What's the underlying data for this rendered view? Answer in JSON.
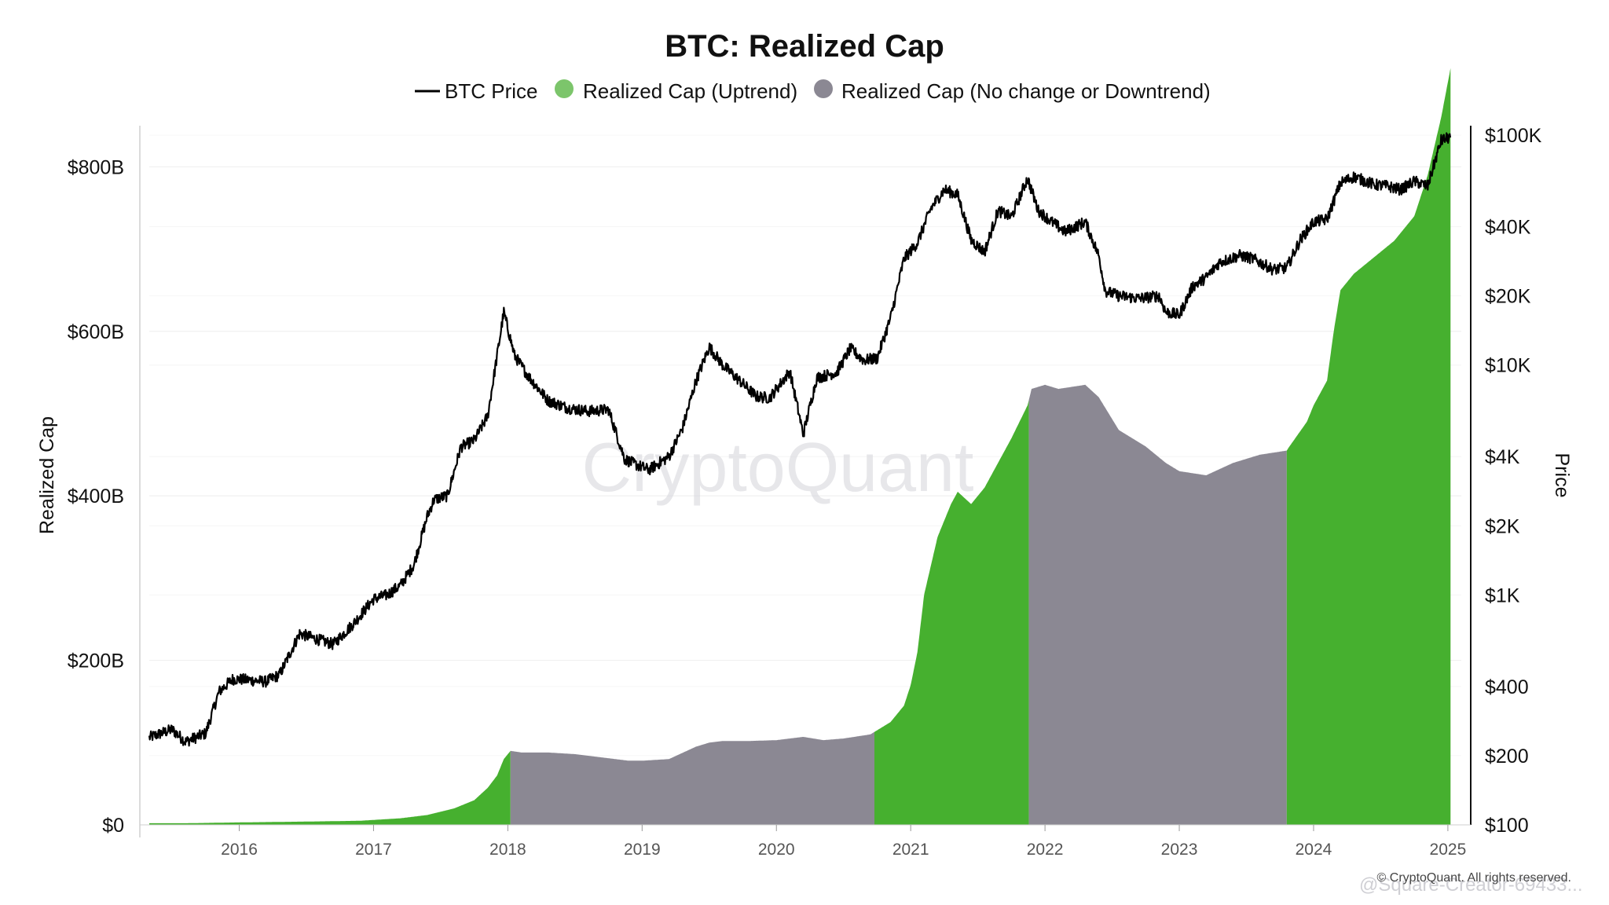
{
  "chart_data": {
    "type": "area",
    "title": "BTC: Realized Cap",
    "legend": [
      {
        "key": "price",
        "label": "BTC Price",
        "symbol": "line",
        "color": "#000000"
      },
      {
        "key": "uptrend",
        "label": "Realized Cap (Uptrend)",
        "symbol": "dot",
        "color": "#7cc56b"
      },
      {
        "key": "flat",
        "label": "Realized Cap (No change or Downtrend)",
        "symbol": "dot",
        "color": "#8b8893"
      }
    ],
    "colors": {
      "uptrend_fill": "#46b02f",
      "flat_fill": "#8b8893",
      "price_line": "#000000"
    },
    "xlim": [
      2015.33,
      2025.1
    ],
    "x_ticks": [
      2016,
      2017,
      2018,
      2019,
      2020,
      2021,
      2022,
      2023,
      2024,
      2025
    ],
    "x_tick_labels": [
      "2016",
      "2017",
      "2018",
      "2019",
      "2020",
      "2021",
      "2022",
      "2023",
      "2024",
      "2025"
    ],
    "left_axis": {
      "label": "Realized Cap",
      "unit": "billion USD",
      "ylim": [
        0,
        850
      ],
      "ticks": [
        0,
        200,
        400,
        600,
        800
      ],
      "tick_labels": [
        "$0",
        "$200B",
        "$400B",
        "$600B",
        "$800B"
      ]
    },
    "right_axis": {
      "label": "Price",
      "scale": "log",
      "ylim": [
        100,
        110000
      ],
      "ticks": [
        100,
        200,
        400,
        1000,
        2000,
        4000,
        10000,
        20000,
        40000,
        100000
      ],
      "tick_labels": [
        "$100",
        "$200",
        "$400",
        "$1K",
        "$2K",
        "$4K",
        "$10K",
        "$20K",
        "$40K",
        "$100K"
      ]
    },
    "series": [
      {
        "name": "Realized Cap",
        "axis": "left",
        "unit": "billion USD",
        "x": [
          2015.33,
          2015.6,
          2016.0,
          2016.5,
          2016.9,
          2017.2,
          2017.4,
          2017.6,
          2017.75,
          2017.85,
          2017.92,
          2017.97,
          2018.02,
          2018.1,
          2018.3,
          2018.5,
          2018.7,
          2018.9,
          2019.0,
          2019.2,
          2019.4,
          2019.5,
          2019.6,
          2019.8,
          2020.0,
          2020.2,
          2020.35,
          2020.5,
          2020.7,
          2020.75,
          2020.85,
          2020.95,
          2021.0,
          2021.05,
          2021.1,
          2021.2,
          2021.3,
          2021.35,
          2021.45,
          2021.55,
          2021.65,
          2021.75,
          2021.87,
          2021.9,
          2022.0,
          2022.1,
          2022.3,
          2022.4,
          2022.55,
          2022.75,
          2022.9,
          2023.0,
          2023.2,
          2023.4,
          2023.6,
          2023.8,
          2023.82,
          2023.95,
          2024.0,
          2024.1,
          2024.15,
          2024.2,
          2024.3,
          2024.45,
          2024.6,
          2024.75,
          2024.85,
          2024.95,
          2025.02
        ],
        "y": [
          2,
          2,
          3,
          4,
          5,
          8,
          12,
          20,
          30,
          45,
          60,
          80,
          90,
          88,
          88,
          86,
          82,
          78,
          78,
          80,
          95,
          100,
          102,
          102,
          103,
          107,
          103,
          105,
          110,
          115,
          125,
          145,
          170,
          210,
          280,
          350,
          390,
          405,
          390,
          410,
          440,
          470,
          510,
          530,
          535,
          530,
          535,
          520,
          480,
          460,
          440,
          430,
          425,
          440,
          450,
          455,
          460,
          490,
          510,
          540,
          600,
          650,
          670,
          690,
          710,
          740,
          790,
          860,
          920
        ]
      },
      {
        "name": "BTC Price",
        "axis": "right",
        "unit": "USD",
        "x": [
          2015.33,
          2015.5,
          2015.6,
          2015.75,
          2015.85,
          2015.95,
          2016.0,
          2016.2,
          2016.3,
          2016.45,
          2016.55,
          2016.7,
          2016.85,
          2017.0,
          2017.1,
          2017.2,
          2017.3,
          2017.4,
          2017.45,
          2017.55,
          2017.65,
          2017.75,
          2017.85,
          2017.92,
          2017.97,
          2018.05,
          2018.15,
          2018.3,
          2018.45,
          2018.6,
          2018.75,
          2018.87,
          2018.95,
          2019.05,
          2019.2,
          2019.3,
          2019.4,
          2019.5,
          2019.6,
          2019.75,
          2019.85,
          2019.95,
          2020.1,
          2020.2,
          2020.3,
          2020.45,
          2020.55,
          2020.65,
          2020.75,
          2020.85,
          2020.95,
          2021.05,
          2021.15,
          2021.25,
          2021.35,
          2021.45,
          2021.55,
          2021.65,
          2021.75,
          2021.87,
          2021.95,
          2022.05,
          2022.15,
          2022.3,
          2022.4,
          2022.45,
          2022.55,
          2022.7,
          2022.85,
          2022.9,
          2023.0,
          2023.1,
          2023.2,
          2023.3,
          2023.45,
          2023.55,
          2023.7,
          2023.8,
          2023.9,
          2024.0,
          2024.1,
          2024.2,
          2024.3,
          2024.45,
          2024.55,
          2024.65,
          2024.75,
          2024.85,
          2024.95,
          2025.02
        ],
        "y": [
          240,
          260,
          230,
          250,
          380,
          430,
          430,
          420,
          450,
          680,
          650,
          610,
          750,
          960,
          1000,
          1100,
          1350,
          2200,
          2600,
          2700,
          4400,
          4700,
          6000,
          11000,
          17000,
          11000,
          9000,
          7000,
          6500,
          6300,
          6400,
          3900,
          3700,
          3500,
          4000,
          5300,
          8500,
          12000,
          10000,
          8300,
          7300,
          7200,
          9400,
          5000,
          8800,
          9300,
          11800,
          10500,
          10700,
          16000,
          29000,
          34000,
          48000,
          58000,
          55000,
          35000,
          31000,
          47000,
          44000,
          65000,
          47000,
          42000,
          38000,
          42000,
          30000,
          21000,
          20000,
          19500,
          20000,
          17000,
          16500,
          22000,
          24000,
          28000,
          30000,
          29000,
          26000,
          26500,
          35000,
          42000,
          43000,
          62000,
          66000,
          61000,
          60000,
          58000,
          63000,
          60000,
          95000,
          98000
        ]
      }
    ],
    "regimes": [
      {
        "from": 2015.33,
        "to": 2018.02,
        "state": "uptrend"
      },
      {
        "from": 2018.02,
        "to": 2020.73,
        "state": "flat"
      },
      {
        "from": 2020.73,
        "to": 2021.88,
        "state": "uptrend"
      },
      {
        "from": 2021.88,
        "to": 2023.8,
        "state": "flat"
      },
      {
        "from": 2023.8,
        "to": 2025.02,
        "state": "uptrend"
      }
    ],
    "watermark": "CryptoQuant",
    "credit": "© CryptoQuant. All rights reserved.",
    "credit_overlay": "@Square-Creator-69433..."
  }
}
